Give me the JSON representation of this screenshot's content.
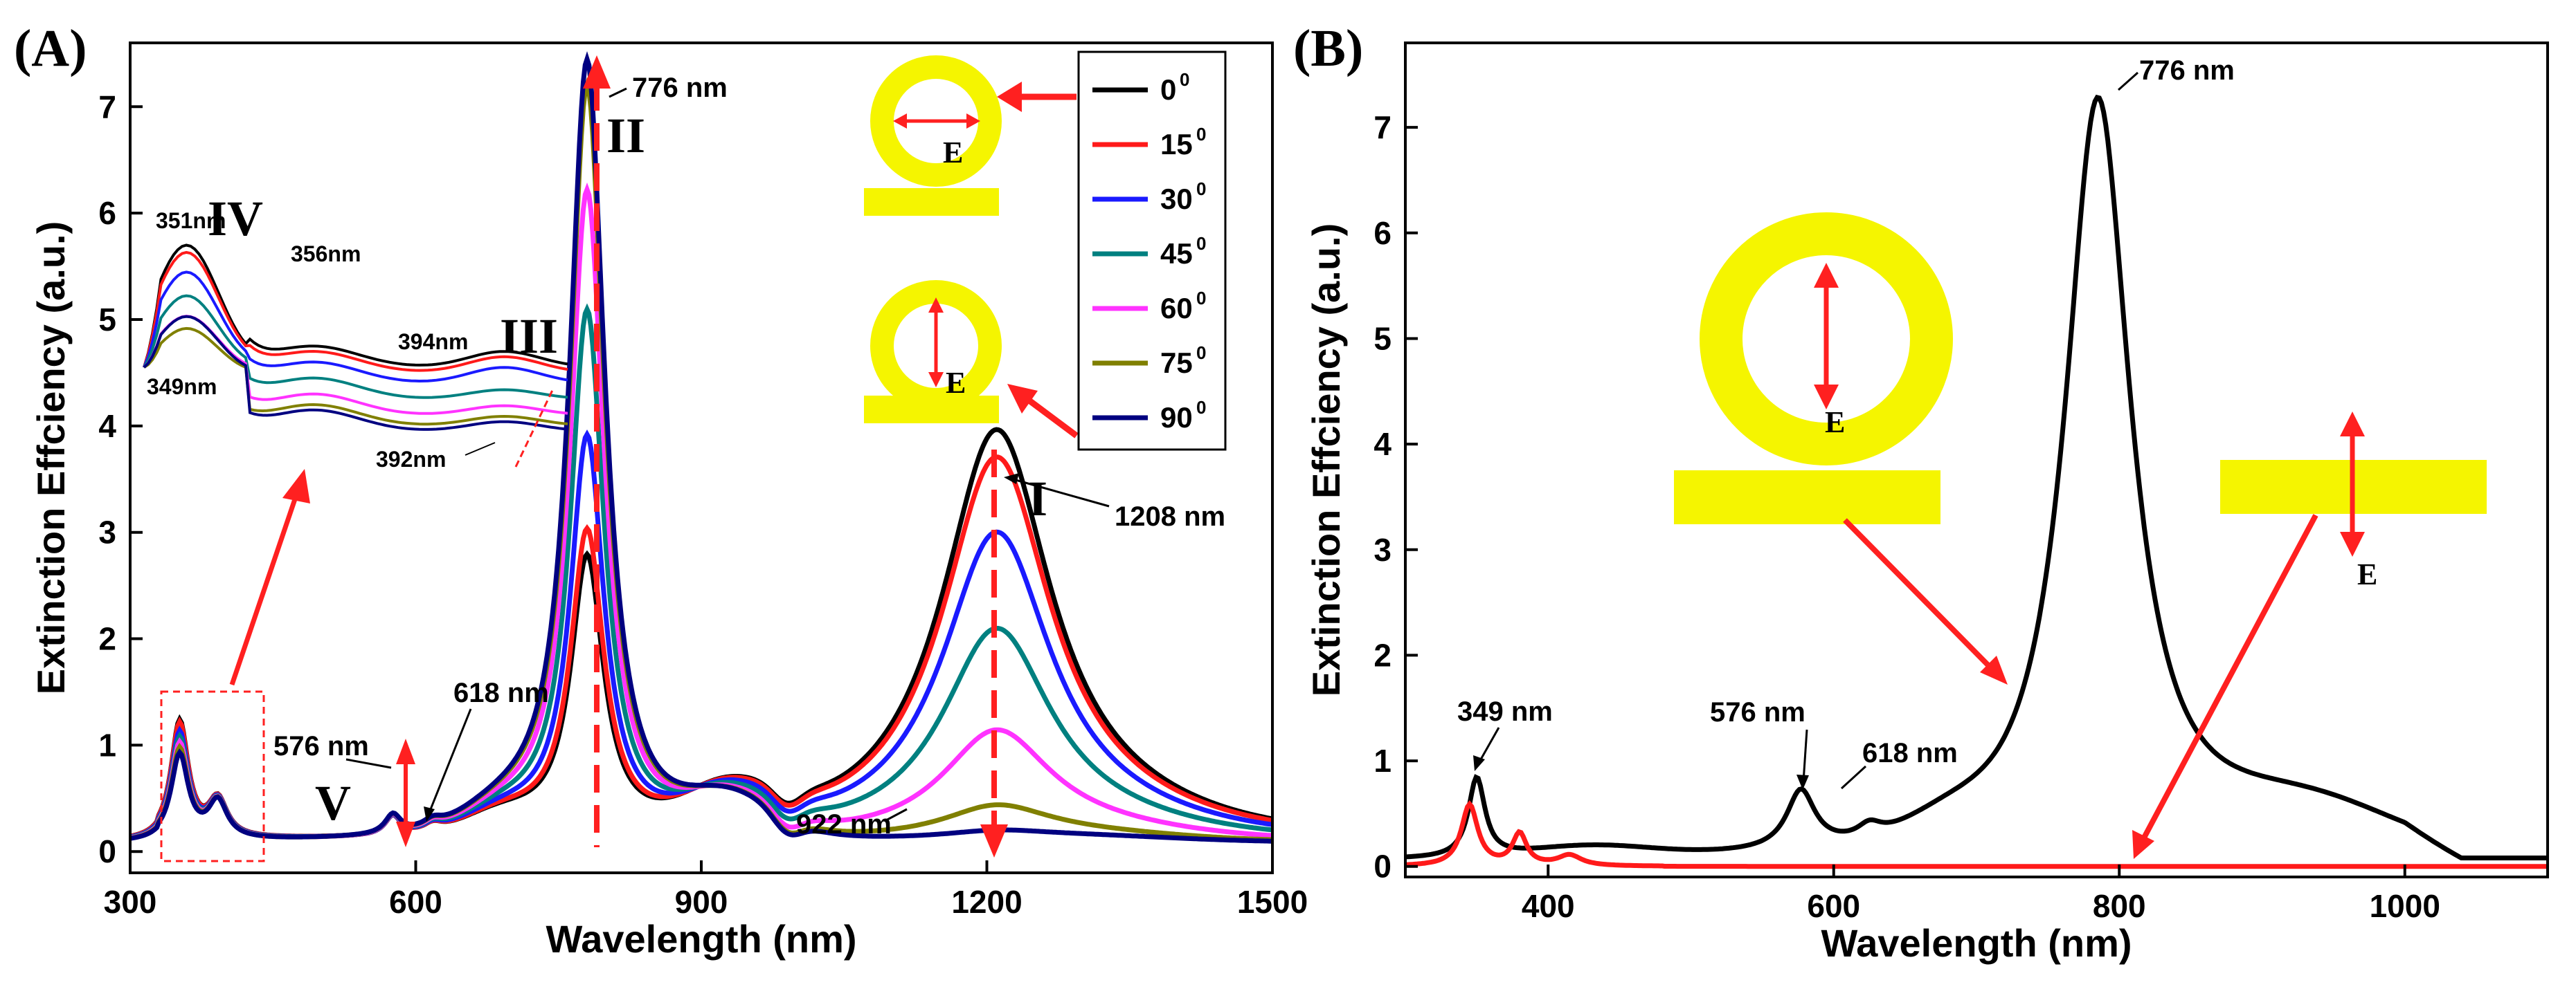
{
  "colors": {
    "s0": "#000000",
    "s15": "#ff1a1a",
    "s30": "#1a1aff",
    "s45": "#008080",
    "s60": "#ff33ff",
    "s75": "#808000",
    "s90": "#000080",
    "gold": "#f5f500",
    "arrow": "#ff2020"
  },
  "chart_data": [
    {
      "panel": "(A)",
      "type": "line",
      "xlabel": "Wavelength (nm)",
      "ylabel": "Extinction Effciency (a.u.)",
      "xlim": [
        300,
        1500
      ],
      "ylim": [
        -0.2,
        7.6
      ],
      "xticks": [
        "300",
        "600",
        "900",
        "1200",
        "1500"
      ],
      "yticks": [
        "0",
        "1",
        "2",
        "3",
        "4",
        "5",
        "6",
        "7"
      ],
      "legend": {
        "position": "top-right",
        "deg": "0",
        "entries": [
          "0",
          "15",
          "30",
          "45",
          "60",
          "75",
          "90"
        ]
      },
      "series": [
        {
          "name": "0°",
          "color": "#000000",
          "peakI": 3.8,
          "peakII": 2.6,
          "uv": 1.1
        },
        {
          "name": "15°",
          "color": "#ff1a1a",
          "peakI": 3.55,
          "peakII": 2.85,
          "uv": 1.08
        },
        {
          "name": "30°",
          "color": "#1a1aff",
          "peakI": 2.85,
          "peakII": 3.75,
          "uv": 1.0
        },
        {
          "name": "45°",
          "color": "#008080",
          "peakI": 1.95,
          "peakII": 4.95,
          "uv": 0.95
        },
        {
          "name": "60°",
          "color": "#ff33ff",
          "peakI": 1.0,
          "peakII": 6.1,
          "uv": 0.9
        },
        {
          "name": "75°",
          "color": "#808000",
          "peakI": 0.3,
          "peakII": 7.1,
          "uv": 0.85
        },
        {
          "name": "90°",
          "color": "#000080",
          "peakI": 0.07,
          "peakII": 7.35,
          "uv": 0.8
        }
      ],
      "annotations": {
        "p776": "776 nm",
        "p1208": "1208 nm",
        "p922": "922 nm",
        "p618": "618 nm",
        "p576": "576 nm",
        "p351": "351nm",
        "p356": "356nm",
        "p349": "349nm",
        "p394": "394nm",
        "p392": "392nm",
        "rI": "I",
        "rII": "II",
        "rIII": "III",
        "rIV": "IV",
        "rV": "V",
        "e1": "E",
        "e2": "E"
      },
      "inset": {
        "series": [
          {
            "name": "0°",
            "color": "#000000",
            "peak": 5.78,
            "plateau": 4.55
          },
          {
            "name": "15°",
            "color": "#ff1a1a",
            "peak": 5.72,
            "plateau": 4.5
          },
          {
            "name": "30°",
            "color": "#1a1aff",
            "peak": 5.55,
            "plateau": 4.4
          },
          {
            "name": "45°",
            "color": "#008080",
            "peak": 5.35,
            "plateau": 4.25
          },
          {
            "name": "60°",
            "color": "#ff33ff",
            "peak": 5.18,
            "plateau": 4.1
          },
          {
            "name": "75°",
            "color": "#808000",
            "peak": 5.08,
            "plateau": 4.0
          },
          {
            "name": "90°",
            "color": "#000080",
            "peak": 5.2,
            "plateau": 3.95
          }
        ]
      }
    },
    {
      "panel": "(B)",
      "type": "line",
      "xlabel": "Wavelength (nm)",
      "ylabel": "Extinction Effciency (a.u.)",
      "xlim": [
        300,
        1100
      ],
      "ylim": [
        -0.1,
        7.8
      ],
      "xticks": [
        "400",
        "600",
        "800",
        "1000"
      ],
      "yticks": [
        "0",
        "1",
        "2",
        "3",
        "4",
        "5",
        "6",
        "7"
      ],
      "series": [
        {
          "name": "nanoring on nanorod",
          "color": "#000000",
          "peak": 7.4,
          "peak_x": 785
        },
        {
          "name": "nanorod",
          "color": "#ff1a1a",
          "peak": 0.58,
          "peak_x": 345
        }
      ],
      "annotations": {
        "p776": "776 nm",
        "p349": "349 nm",
        "p576": "576 nm",
        "p618": "618 nm",
        "e1": "E",
        "e2": "E"
      }
    }
  ]
}
